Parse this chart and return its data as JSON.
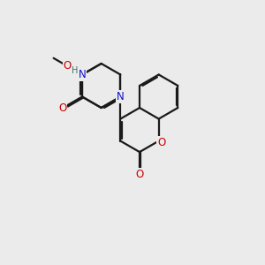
{
  "bg_color": "#ebebeb",
  "bond_color": "#1a1a1a",
  "bond_width": 1.6,
  "N_color": "#1010cc",
  "O_color": "#cc0000",
  "H_color": "#407070",
  "font_size": 8.5,
  "fig_size": [
    3.0,
    3.0
  ],
  "dpi": 100,
  "xlim": [
    0,
    10
  ],
  "ylim": [
    0,
    10
  ],
  "r": 1.0
}
